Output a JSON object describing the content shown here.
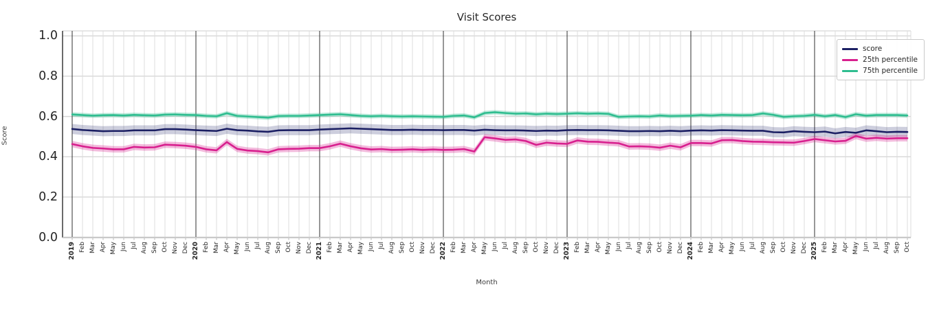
{
  "chart_data": {
    "type": "line",
    "title": "Visit Scores",
    "xlabel": "Month",
    "ylabel": "Score",
    "ylim": [
      0.0,
      1.0
    ],
    "ytick_labels": [
      "0.0",
      "0.2",
      "0.4",
      "0.6",
      "0.8",
      "1.0"
    ],
    "grid": true,
    "legend_position": "upper right",
    "x_tick_labels": [
      "2019",
      "Feb",
      "Mar",
      "Apr",
      "May",
      "Jun",
      "Jul",
      "Aug",
      "Sep",
      "Oct",
      "Nov",
      "Dec",
      "2020",
      "Feb",
      "Mar",
      "Apr",
      "May",
      "Jun",
      "Jul",
      "Aug",
      "Sep",
      "Oct",
      "Nov",
      "Dec",
      "2021",
      "Feb",
      "Mar",
      "Apr",
      "May",
      "Jun",
      "Jul",
      "Aug",
      "Sep",
      "Oct",
      "Nov",
      "Dec",
      "2022",
      "Feb",
      "Mar",
      "Apr",
      "May",
      "Jun",
      "Jul",
      "Aug",
      "Sep",
      "Oct",
      "Nov",
      "Dec",
      "2023",
      "Feb",
      "Mar",
      "Apr",
      "May",
      "Jun",
      "Jul",
      "Aug",
      "Sep",
      "Oct",
      "Nov",
      "Dec",
      "2024",
      "Feb",
      "Mar",
      "Apr",
      "May",
      "Jun",
      "Jul",
      "Aug",
      "Sep",
      "Oct",
      "Nov",
      "Dec",
      "2025",
      "Feb",
      "Mar",
      "Apr",
      "May",
      "Jun",
      "Jul",
      "Aug",
      "Sep",
      "Oct"
    ],
    "series": [
      {
        "name": "score",
        "color": "#1b1f63",
        "band_halfwidth": 0.025,
        "band_opacity": 0.22,
        "values": [
          0.538,
          0.533,
          0.53,
          0.527,
          0.528,
          0.528,
          0.531,
          0.531,
          0.531,
          0.537,
          0.537,
          0.535,
          0.532,
          0.53,
          0.528,
          0.539,
          0.532,
          0.53,
          0.526,
          0.524,
          0.531,
          0.532,
          0.532,
          0.532,
          0.535,
          0.537,
          0.539,
          0.541,
          0.539,
          0.537,
          0.535,
          0.533,
          0.533,
          0.534,
          0.533,
          0.533,
          0.532,
          0.533,
          0.533,
          0.53,
          0.534,
          0.532,
          0.531,
          0.531,
          0.53,
          0.528,
          0.53,
          0.529,
          0.532,
          0.533,
          0.532,
          0.532,
          0.531,
          0.529,
          0.527,
          0.527,
          0.528,
          0.527,
          0.529,
          0.527,
          0.53,
          0.531,
          0.53,
          0.532,
          0.531,
          0.53,
          0.529,
          0.529,
          0.522,
          0.521,
          0.527,
          0.524,
          0.522,
          0.525,
          0.516,
          0.523,
          0.519,
          0.531,
          0.527,
          0.522,
          0.524,
          0.523
        ]
      },
      {
        "name": "25th percentile",
        "color": "#d81f8e",
        "band_halfwidth": 0.016,
        "band_opacity": 0.3,
        "values": [
          0.463,
          0.452,
          0.444,
          0.441,
          0.437,
          0.437,
          0.449,
          0.446,
          0.447,
          0.46,
          0.458,
          0.455,
          0.449,
          0.437,
          0.432,
          0.473,
          0.439,
          0.431,
          0.428,
          0.422,
          0.437,
          0.439,
          0.44,
          0.443,
          0.443,
          0.452,
          0.465,
          0.452,
          0.442,
          0.436,
          0.438,
          0.434,
          0.435,
          0.437,
          0.434,
          0.436,
          0.434,
          0.435,
          0.438,
          0.426,
          0.497,
          0.491,
          0.484,
          0.486,
          0.478,
          0.459,
          0.47,
          0.466,
          0.464,
          0.481,
          0.475,
          0.474,
          0.47,
          0.467,
          0.451,
          0.452,
          0.45,
          0.445,
          0.455,
          0.447,
          0.468,
          0.468,
          0.466,
          0.482,
          0.483,
          0.478,
          0.475,
          0.474,
          0.472,
          0.471,
          0.47,
          0.478,
          0.488,
          0.482,
          0.476,
          0.479,
          0.503,
          0.49,
          0.494,
          0.49,
          0.492,
          0.492
        ]
      },
      {
        "name": "75th percentile",
        "color": "#2ebd8f",
        "band_halfwidth": 0.011,
        "band_opacity": 0.32,
        "values": [
          0.61,
          0.607,
          0.604,
          0.606,
          0.607,
          0.605,
          0.608,
          0.606,
          0.605,
          0.609,
          0.61,
          0.608,
          0.607,
          0.603,
          0.601,
          0.616,
          0.603,
          0.6,
          0.597,
          0.594,
          0.602,
          0.603,
          0.603,
          0.605,
          0.607,
          0.609,
          0.611,
          0.607,
          0.603,
          0.601,
          0.603,
          0.601,
          0.6,
          0.601,
          0.6,
          0.599,
          0.598,
          0.603,
          0.605,
          0.596,
          0.617,
          0.621,
          0.617,
          0.614,
          0.615,
          0.611,
          0.614,
          0.612,
          0.614,
          0.616,
          0.614,
          0.615,
          0.613,
          0.598,
          0.6,
          0.601,
          0.6,
          0.605,
          0.602,
          0.603,
          0.604,
          0.607,
          0.605,
          0.608,
          0.607,
          0.606,
          0.607,
          0.615,
          0.608,
          0.598,
          0.601,
          0.603,
          0.608,
          0.601,
          0.607,
          0.597,
          0.611,
          0.604,
          0.607,
          0.607,
          0.607,
          0.605
        ]
      }
    ]
  }
}
